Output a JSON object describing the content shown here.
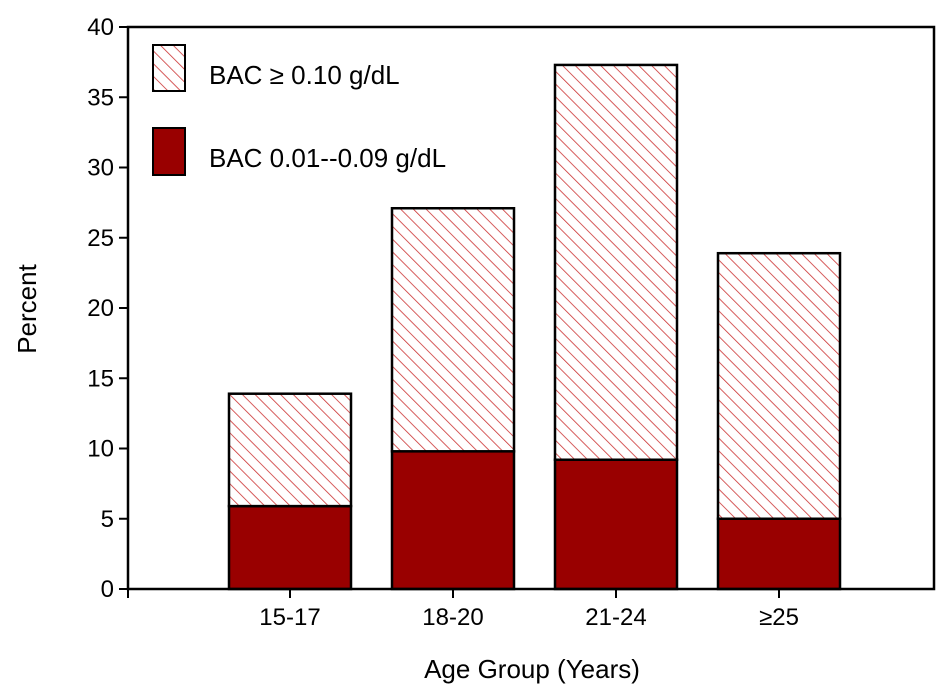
{
  "chart_data": {
    "type": "bar",
    "stacked": true,
    "categories": [
      "15-17",
      "18-20",
      "21-24",
      "≥25"
    ],
    "series": [
      {
        "name": "BAC 0.01--0.09 g/dL",
        "values": [
          5.9,
          9.8,
          9.2,
          5.0
        ],
        "color": "#990000",
        "fill": "solid"
      },
      {
        "name": "BAC ≥ 0.10 g/dL",
        "values": [
          8.0,
          17.3,
          28.1,
          18.9
        ],
        "color": "#cc3333",
        "fill": "hatched"
      }
    ],
    "title": "",
    "xlabel": "Age Group (Years)",
    "ylabel": "Percent",
    "ylim": [
      0,
      40
    ],
    "yticks": [
      0,
      5,
      10,
      15,
      20,
      25,
      30,
      35,
      40
    ],
    "grid": false,
    "legend": {
      "placement": "top-left",
      "order": [
        "BAC ≥ 0.10 g/dL",
        "BAC 0.01--0.09 g/dL"
      ]
    }
  }
}
